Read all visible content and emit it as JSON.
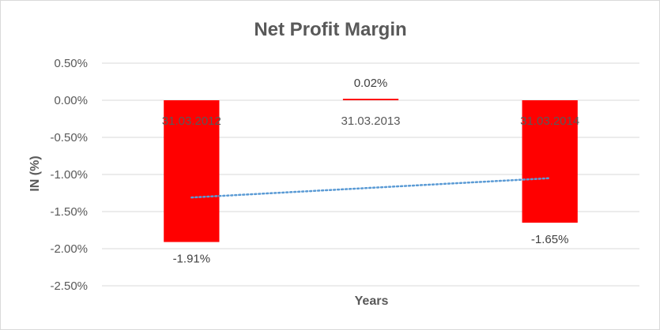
{
  "chart_data": {
    "type": "bar",
    "title": "Net Profit Margin",
    "xlabel": "Years",
    "ylabel": "IN (%)",
    "categories": [
      "31.03.2012",
      "31.03.2013",
      "31.03.2014"
    ],
    "values": [
      -1.91,
      0.02,
      -1.65
    ],
    "data_labels": [
      "-1.91%",
      "0.02%",
      "-1.65%"
    ],
    "ylim": [
      -2.5,
      0.5
    ],
    "yticks": [
      0.5,
      0.0,
      -0.5,
      -1.0,
      -1.5,
      -2.0,
      -2.5
    ],
    "ytick_labels": [
      "0.50%",
      "0.00%",
      "-0.50%",
      "-1.00%",
      "-1.50%",
      "-2.00%",
      "-2.50%"
    ],
    "grid": true,
    "legend": "none",
    "trendline": {
      "type": "linear",
      "style": "dotted"
    },
    "colors": {
      "bar": "#ff0000",
      "trendline": "#5b9bd5",
      "grid": "#d9d9d9",
      "text": "#595959"
    }
  }
}
